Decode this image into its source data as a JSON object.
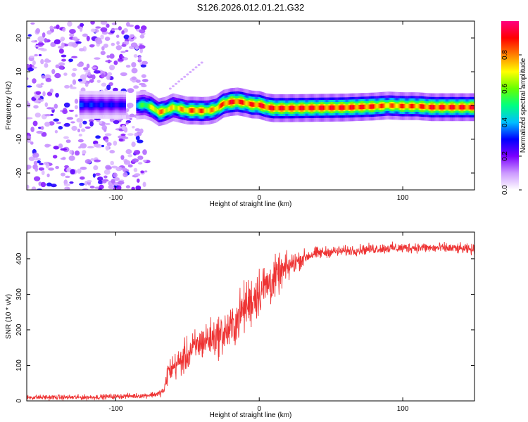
{
  "figure": {
    "title": "S126.2026.012.01.21.G32"
  },
  "colorbar": {
    "label": "Normalized spectral amplitude",
    "range": [
      0.0,
      1.0
    ],
    "ticks": [
      0.0,
      0.2,
      0.4,
      0.6,
      0.8
    ],
    "tick_labels": [
      "0.0",
      "0.2",
      "0.4",
      "0.6",
      "0.8"
    ],
    "colors": [
      "#ffffff",
      "#cc99ff",
      "#7b00ff",
      "#0000ff",
      "#00bfff",
      "#00ff80",
      "#66ff00",
      "#ffff00",
      "#ff8000",
      "#ff0000",
      "#ff0080"
    ]
  },
  "chart_data": [
    {
      "type": "heatmap",
      "title": "S126.2026.012.01.21.G32",
      "xlabel": "Height of straight line (km)",
      "ylabel": "Frequency (Hz)",
      "xlim": [
        -162,
        150
      ],
      "ylim": [
        -25,
        25
      ],
      "xticks": [
        -100,
        0,
        100
      ],
      "xtick_labels": [
        "-100",
        "0",
        "100"
      ],
      "yticks": [
        -20,
        -10,
        0,
        10,
        20
      ],
      "ytick_labels": [
        "-20",
        "-10",
        "0",
        "10",
        "20"
      ],
      "noise_region": {
        "x_range": [
          -162,
          -78
        ],
        "freq_range": [
          -25,
          25
        ]
      },
      "ridge": {
        "x": [
          -125,
          -95,
          -85,
          -80,
          -75,
          -70,
          -65,
          -60,
          -55,
          -50,
          -45,
          -40,
          -35,
          -30,
          -25,
          -20,
          -15,
          -10,
          -5,
          0,
          5,
          10,
          20,
          40,
          60,
          80,
          90,
          100,
          110,
          120,
          135,
          150
        ],
        "freq": [
          0.2,
          0.2,
          0,
          0.2,
          -0.5,
          -2.0,
          -1.5,
          -0.5,
          -1.0,
          -1.5,
          -1.5,
          -1.6,
          -1.5,
          -1.0,
          0.5,
          1.0,
          1.2,
          0.8,
          0.3,
          0.2,
          -0.5,
          -0.8,
          -0.8,
          -0.7,
          -0.6,
          -0.3,
          0,
          -0.2,
          -0.2,
          -0.5,
          -0.5,
          -0.5
        ],
        "amplitude": [
          0.35,
          0.3,
          0.5,
          0.6,
          0.7,
          0.85,
          0.8,
          0.75,
          0.8,
          0.85,
          0.9,
          0.88,
          0.8,
          0.85,
          0.9,
          0.95,
          0.95,
          0.9,
          0.92,
          0.95,
          0.95,
          0.95,
          0.95,
          0.95,
          0.95,
          0.93,
          0.85,
          0.9,
          0.9,
          0.95,
          0.95,
          0.95
        ]
      }
    },
    {
      "type": "line",
      "title": "",
      "xlabel": "Height of straight line (km)",
      "ylabel": "SNR (10 * v/v)",
      "xlim": [
        -162,
        150
      ],
      "ylim": [
        0,
        475
      ],
      "xticks": [
        -100,
        0,
        100
      ],
      "xtick_labels": [
        "-100",
        "0",
        "100"
      ],
      "yticks": [
        0,
        100,
        200,
        300,
        400
      ],
      "ytick_labels": [
        "0",
        "100",
        "200",
        "300",
        "400"
      ],
      "series": [
        {
          "name": "SNR",
          "color": "#ee3333",
          "x": [
            -162,
            -120,
            -80,
            -70,
            -66,
            -64,
            -60,
            -55,
            -50,
            -45,
            -40,
            -35,
            -30,
            -25,
            -20,
            -15,
            -10,
            -5,
            0,
            5,
            10,
            15,
            20,
            25,
            30,
            35,
            40,
            50,
            60,
            70,
            80,
            90,
            100,
            110,
            120,
            130,
            140,
            150
          ],
          "values": [
            10,
            10,
            15,
            20,
            30,
            80,
            95,
            110,
            130,
            150,
            165,
            175,
            180,
            190,
            200,
            230,
            265,
            285,
            310,
            325,
            340,
            360,
            375,
            390,
            400,
            410,
            415,
            420,
            422,
            425,
            428,
            430,
            430,
            432,
            430,
            430,
            428,
            425
          ],
          "noise": [
            6,
            6,
            6,
            8,
            10,
            30,
            30,
            35,
            40,
            40,
            40,
            45,
            45,
            50,
            50,
            55,
            60,
            60,
            60,
            55,
            50,
            40,
            35,
            25,
            20,
            15,
            15,
            12,
            12,
            12,
            12,
            12,
            12,
            12,
            12,
            12,
            12,
            12
          ]
        }
      ]
    }
  ]
}
